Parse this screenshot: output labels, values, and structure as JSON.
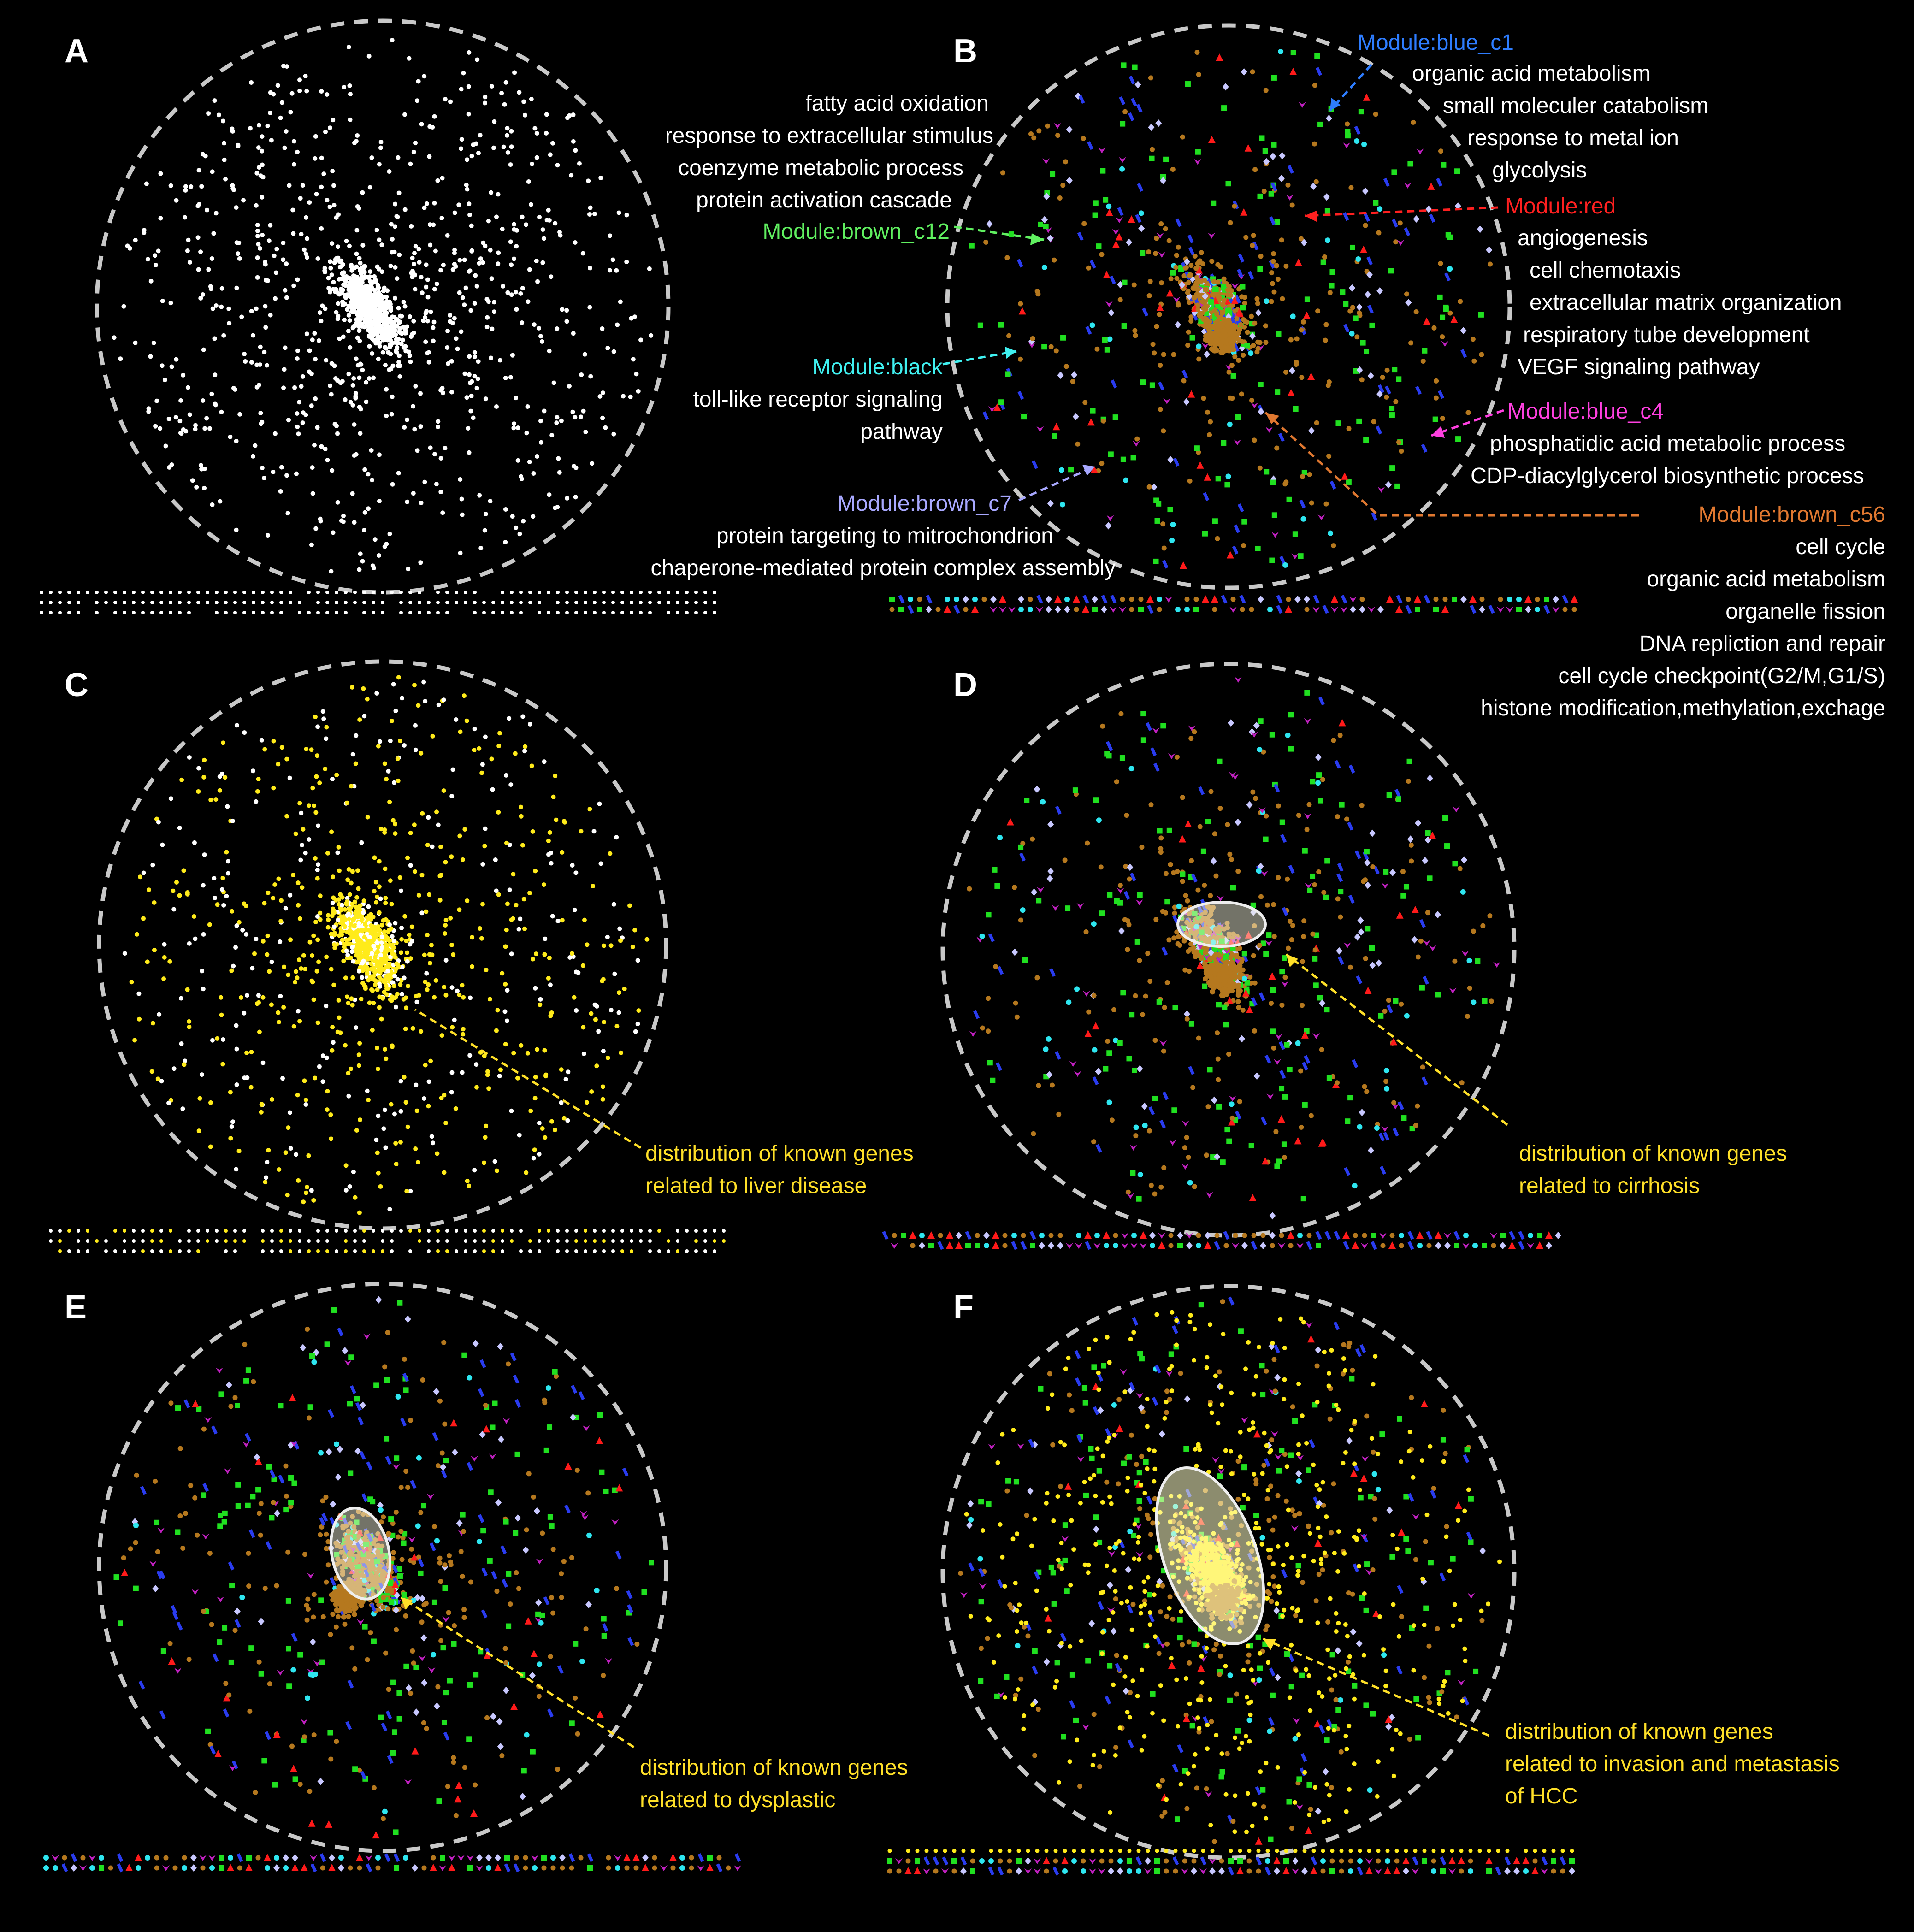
{
  "colors": {
    "background": "#000000",
    "circle": "#c8c8c8",
    "white": "#ffffff",
    "yellow": "#ffeb1a",
    "green": "#20e020",
    "brown": "#b5781e",
    "blue": "#2a3cf0",
    "red": "#ff1a1a",
    "cyan": "#2ee6f0",
    "lavender": "#c8c8ff",
    "magenta": "#c020c0",
    "blue_c1_text": "#2e7dff",
    "red_text": "#ff2020",
    "brown_c12_text": "#60f060",
    "black_text": "#40f0f0",
    "brown_c7_text": "#a8a8ff",
    "blue_c4_text": "#ff40e0",
    "brown_c56_text": "#e07830",
    "callout_yellow": "#ffe028"
  },
  "panels": [
    {
      "label": "A",
      "mode": "white"
    },
    {
      "label": "B",
      "mode": "modules"
    },
    {
      "label": "C",
      "mode": "liver"
    },
    {
      "label": "D",
      "mode": "modules"
    },
    {
      "label": "E",
      "mode": "modules"
    },
    {
      "label": "F",
      "mode": "modules-yellow"
    }
  ],
  "annotations_B": {
    "left_terms": [
      "fatty acid oxidation",
      "response to extracellular stimulus",
      "coenzyme metabolic process",
      "protein activation cascade"
    ],
    "brown_c12": "Module:brown_c12",
    "black": "Module:black",
    "black_terms": [
      "toll-like receptor signaling",
      "pathway"
    ],
    "brown_c7": "Module:brown_c7",
    "brown_c7_terms": [
      "protein targeting to mitrochondrion",
      "chaperone-mediated protein complex assembly"
    ],
    "blue_c1": "Module:blue_c1",
    "blue_c1_terms": [
      "organic acid metabolism",
      "small moleculer catabolism",
      "response to metal ion",
      "glycolysis"
    ],
    "red": "Module:red",
    "red_terms": [
      "angiogenesis",
      "cell chemotaxis",
      "extracellular matrix organization",
      "respiratory tube development",
      "VEGF signaling pathway"
    ],
    "blue_c4": "Module:blue_c4",
    "blue_c4_terms": [
      "phosphatidic acid metabolic process",
      "CDP-diacylglycerol biosynthetic process"
    ],
    "brown_c56": "Module:brown_c56",
    "brown_c56_terms": [
      "cell cycle",
      "organic acid metabolism",
      "organelle fission",
      "DNA repliction and repair",
      "cell cycle checkpoint(G2/M,G1/S)",
      "histone modification,methylation,exchage"
    ]
  },
  "callouts": {
    "C": [
      "distribution of known genes",
      "related to liver disease"
    ],
    "D": [
      "distribution of   known genes",
      "related to  cirrhosis"
    ],
    "E": [
      "distribution of   known genes",
      "related to  dysplastic"
    ],
    "F": [
      "distribution of   known genes",
      "related to  invasion and metastasis",
      "of HCC"
    ]
  }
}
